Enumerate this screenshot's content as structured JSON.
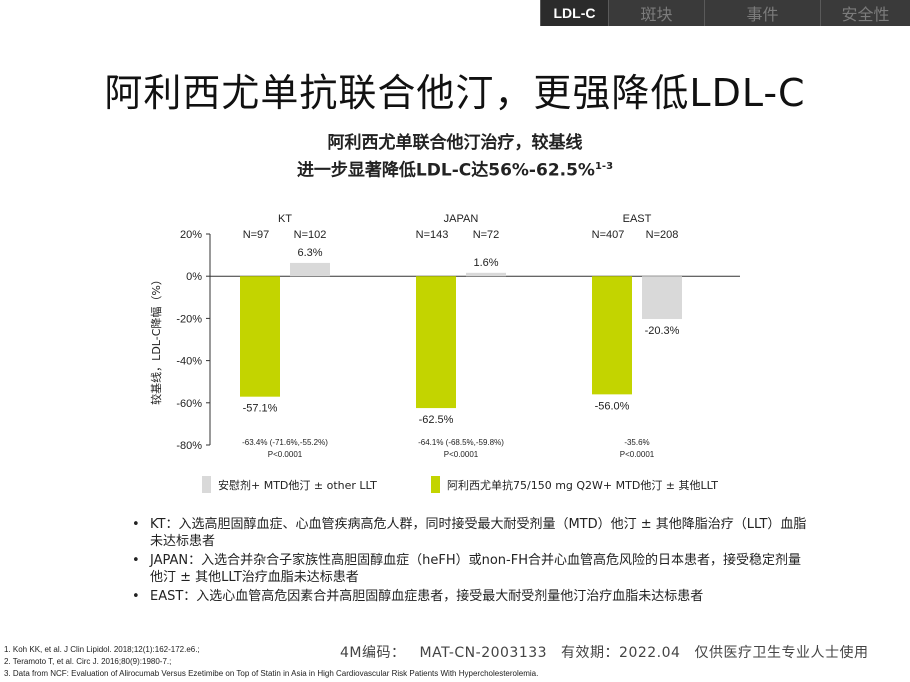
{
  "nav": {
    "tabs": [
      {
        "label": "LDL-C",
        "active": true
      },
      {
        "label": "斑块",
        "active": false
      },
      {
        "label": "事件",
        "active": false
      },
      {
        "label": "安全性",
        "active": false
      }
    ]
  },
  "title": "阿利西尤单抗联合他汀，更强降低LDL-C",
  "subtitle": {
    "line1": "阿利西尤单联合他汀治疗，较基线",
    "line2": "进一步显著降低LDL-C达56%-62.5%",
    "line2_sup": "1-3"
  },
  "chart_data": {
    "type": "bar",
    "ylabel": "较基线，LDL-C降幅（%）",
    "ylim": [
      -80,
      20
    ],
    "yticks": [
      "20%",
      "0%",
      "-20%",
      "-40%",
      "-60%",
      "-80%"
    ],
    "ytick_values": [
      20,
      0,
      -20,
      -40,
      -60,
      -80
    ],
    "categories": [
      "KT",
      "JAPAN",
      "EAST"
    ],
    "series": [
      {
        "name": "阿利西尤单抗75/150 mg Q2W+ MTD他汀 ± 其他LLT",
        "color": "#c3d400",
        "values": [
          -57.1,
          -62.5,
          -56.0
        ],
        "labels": [
          "-57.1%",
          "-62.5%",
          "-56.0%"
        ],
        "n": [
          "N=97",
          "N=143",
          "N=407"
        ]
      },
      {
        "name": "安慰剂+ MTD他汀 ± other LLT",
        "color": "#d9d9d9",
        "values": [
          6.3,
          1.6,
          -20.3
        ],
        "labels": [
          "6.3%",
          "1.6%",
          "-20.3%"
        ],
        "n": [
          "N=102",
          "N=72",
          "N=208"
        ]
      }
    ],
    "differences": [
      {
        "line1": "-63.4% (-71.6%,-55.2%)",
        "line2": "P<0.0001"
      },
      {
        "line1": "-64.1% (-68.5%,-59.8%)",
        "line2": "P<0.0001"
      },
      {
        "line1": "-35.6%",
        "line2": "P<0.0001"
      }
    ],
    "legend_position": "bottom"
  },
  "bullets": [
    {
      "dot": "•",
      "text": "KT：入选高胆固醇血症、心血管疾病高危人群，同时接受最大耐受剂量（MTD）他汀 ± 其他降脂治疗（LLT）血脂未达标患者"
    },
    {
      "dot": "•",
      "text": "JAPAN：入选合并杂合子家族性高胆固醇血症（heFH）或non-FH合并心血管高危风险的日本患者，接受稳定剂量他汀 ± 其他LLT治疗血脂未达标患者"
    },
    {
      "dot": "•",
      "text": "EAST：入选心血管高危因素合并高胆固醇血症患者，接受最大耐受剂量他汀治疗血脂未达标患者"
    }
  ],
  "references": [
    "1. Koh KK, et al. J Clin Lipidol. 2018;12(1):162-172.e6.;",
    "2. Teramoto T, et al. Circ J. 2016;80(9):1980-7.;",
    "3. Data from NCF: Evaluation of Alirocumab Versus Ezetimibe on Top of Statin in Asia in High Cardiovascular Risk Patients With Hypercholesterolemia."
  ],
  "footer": {
    "code_label": "4M编码：",
    "code_value": "MAT-CN-2003133",
    "validity_label": "有效期：",
    "validity_value": "2022.04",
    "note": "仅供医疗卫生专业人士使用"
  }
}
